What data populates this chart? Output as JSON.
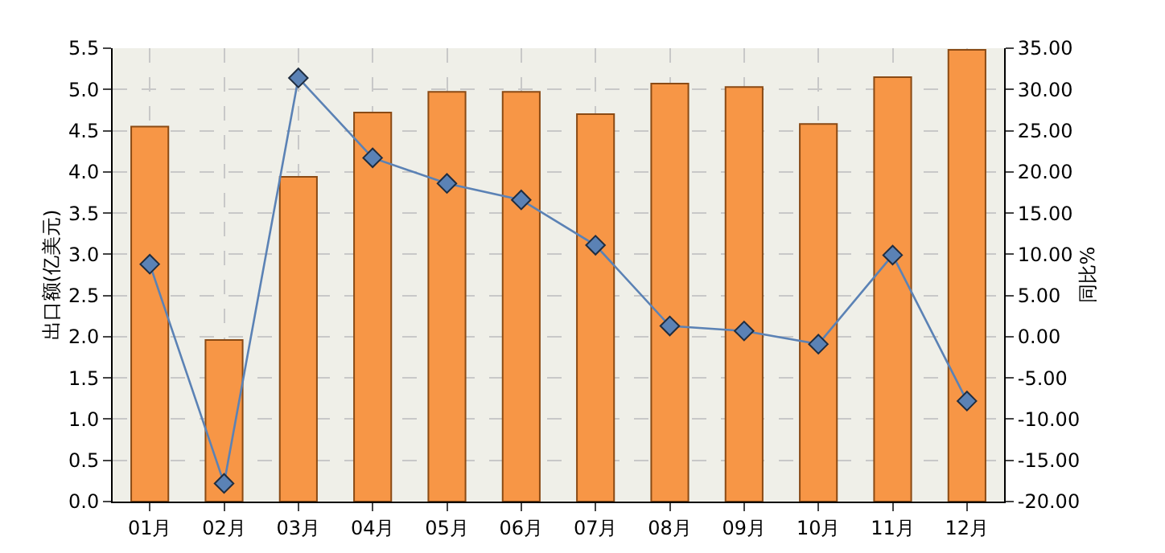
{
  "chart_data": {
    "type": "bar",
    "ylabel": "出口额(亿美元)",
    "y2label": "同比%",
    "categories": [
      "01月",
      "02月",
      "03月",
      "04月",
      "05月",
      "06月",
      "07月",
      "08月",
      "09月",
      "10月",
      "11月",
      "12月"
    ],
    "series": [
      {
        "color": "#f79646",
        "values": [
          4.55,
          1.96,
          3.94,
          4.72,
          4.97,
          4.97,
          4.7,
          5.07,
          5.03,
          4.58,
          5.15,
          5.48
        ]
      },
      {
        "type": "line",
        "axis": "y2",
        "color": "#5b82b5",
        "marker": "diamond",
        "values": [
          8.8,
          -17.8,
          31.4,
          21.7,
          18.6,
          16.6,
          11.1,
          1.3,
          0.7,
          -0.9,
          9.9,
          -7.8
        ]
      }
    ],
    "ylim": [
      0,
      5.5
    ],
    "yticks": [
      {
        "value": 0,
        "label": "0.0"
      },
      0.5,
      {
        "value": 1,
        "label": "1.0"
      },
      1.5,
      {
        "value": 2,
        "label": "2.0"
      },
      2.5,
      {
        "value": 3,
        "label": "3.0"
      },
      3.5,
      {
        "value": 4,
        "label": "4.0"
      },
      4.5,
      {
        "value": 5,
        "label": "5.0"
      },
      5.5
    ],
    "y2lim": [
      -20,
      35
    ],
    "y2ticks": [
      {
        "value": -20,
        "label": "-20.00"
      },
      {
        "value": -15,
        "label": "-15.00"
      },
      {
        "value": -10,
        "label": "-10.00"
      },
      {
        "value": -5,
        "label": "-5.00"
      },
      {
        "value": 0,
        "label": "0.00"
      },
      {
        "value": 5,
        "label": "5.00"
      },
      {
        "value": 10,
        "label": "10.00"
      },
      {
        "value": 15,
        "label": "15.00"
      },
      {
        "value": 20,
        "label": "20.00"
      },
      {
        "value": 25,
        "label": "25.00"
      },
      {
        "value": 30,
        "label": "30.00"
      },
      {
        "value": 35,
        "label": "35.00"
      }
    ],
    "grid": true
  }
}
